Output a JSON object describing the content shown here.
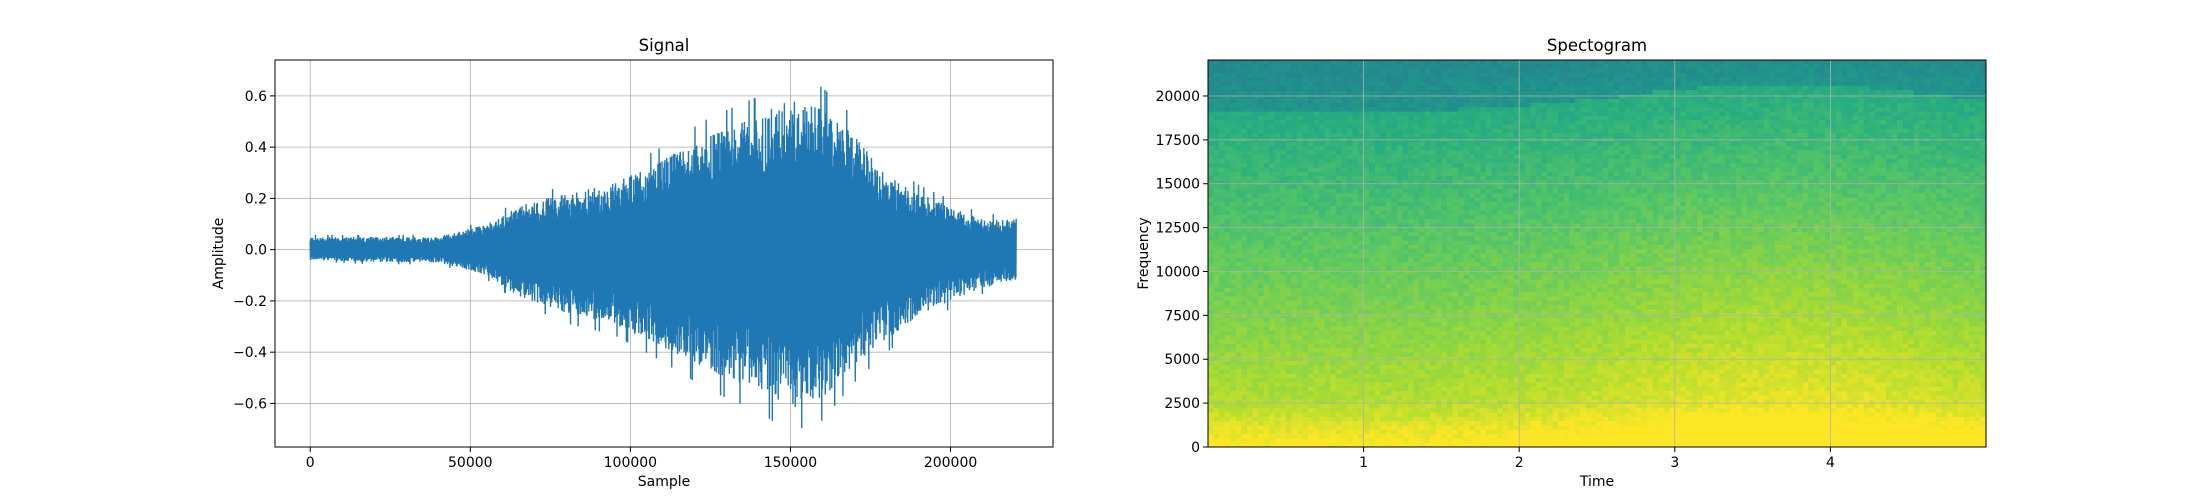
{
  "chart_data": [
    {
      "type": "line",
      "title": "Signal",
      "xlabel": "Sample",
      "ylabel": "Amplitude",
      "xlim": [
        -11000,
        232000
      ],
      "ylim": [
        -0.77,
        0.74
      ],
      "xticks": [
        0,
        50000,
        100000,
        150000,
        200000
      ],
      "yticks": [
        -0.6,
        -0.4,
        -0.2,
        0.0,
        0.2,
        0.4,
        0.6
      ],
      "grid": true,
      "line_color": "#1f77b4",
      "series": [
        {
          "x": [
            0,
            20000,
            40000,
            55000,
            65000,
            80000,
            95000,
            110000,
            125000,
            140000,
            150000,
            160000,
            170000,
            180000,
            190000,
            200000,
            210000,
            220500
          ],
          "upper": [
            0.05,
            0.05,
            0.05,
            0.1,
            0.17,
            0.22,
            0.26,
            0.35,
            0.45,
            0.52,
            0.6,
            0.55,
            0.45,
            0.3,
            0.22,
            0.17,
            0.12,
            0.12
          ],
          "lower": [
            -0.04,
            -0.05,
            -0.05,
            -0.1,
            -0.18,
            -0.25,
            -0.29,
            -0.38,
            -0.48,
            -0.55,
            -0.62,
            -0.58,
            -0.45,
            -0.35,
            -0.26,
            -0.2,
            -0.15,
            -0.12
          ]
        }
      ]
    },
    {
      "type": "heatmap",
      "title": "Spectogram",
      "xlabel": "Time",
      "ylabel": "Frequency",
      "xlim": [
        0,
        5.0
      ],
      "ylim": [
        0,
        22050
      ],
      "xticks": [
        1,
        2,
        3,
        4
      ],
      "yticks": [
        0,
        2500,
        5000,
        7500,
        10000,
        12500,
        15000,
        17500,
        20000
      ],
      "grid": true,
      "colormap": "viridis"
    }
  ]
}
